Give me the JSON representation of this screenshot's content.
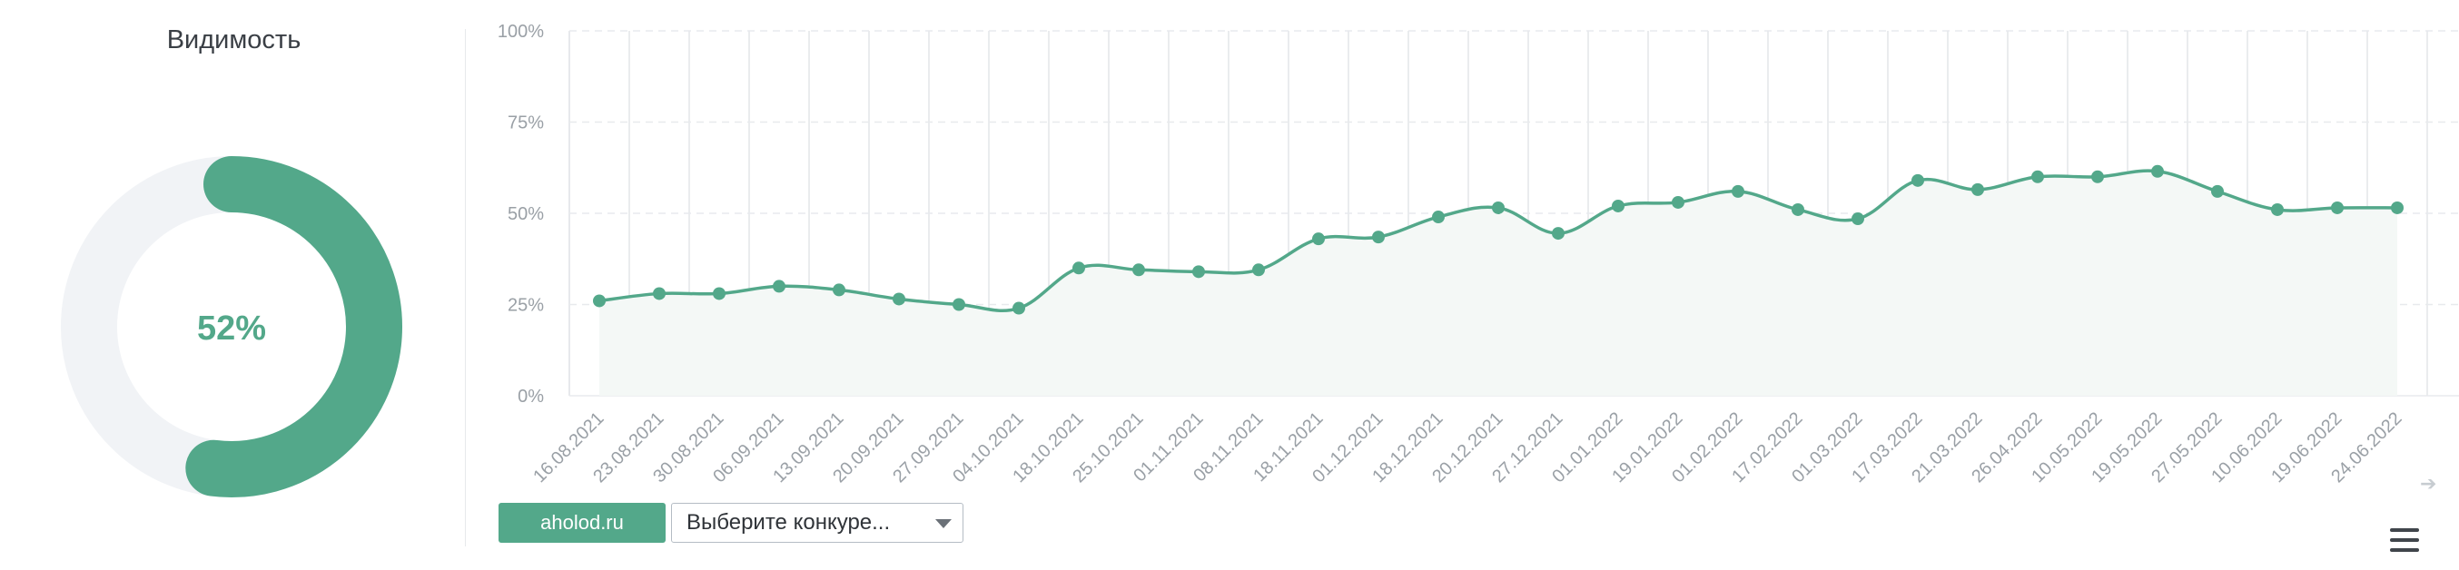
{
  "visibility": {
    "title": "Видимость",
    "percent_label": "52%",
    "value_fraction": 0.52,
    "track_color": "#f1f3f6",
    "fill_color": "#53a88a",
    "label_color": "#53a88a"
  },
  "controls": {
    "site_button_label": "aholod.ru",
    "competitor_select_label": "Выберите конкуре..."
  },
  "icons": {
    "menu": "hamburger-menu-icon",
    "arrow": "arrow-right-icon"
  },
  "chart_data": {
    "type": "area",
    "categories": [
      "16.08.2021",
      "23.08.2021",
      "30.08.2021",
      "06.09.2021",
      "13.09.2021",
      "20.09.2021",
      "27.09.2021",
      "04.10.2021",
      "18.10.2021",
      "25.10.2021",
      "01.11.2021",
      "08.11.2021",
      "18.11.2021",
      "01.12.2021",
      "18.12.2021",
      "20.12.2021",
      "27.12.2021",
      "01.01.2022",
      "19.01.2022",
      "01.02.2022",
      "17.02.2022",
      "01.03.2022",
      "17.03.2022",
      "21.03.2022",
      "26.04.2022",
      "10.05.2022",
      "19.05.2022",
      "27.05.2022",
      "10.06.2022",
      "19.06.2022",
      "24.06.2022"
    ],
    "series": [
      {
        "values": [
          26,
          28,
          28,
          30,
          29,
          26.5,
          25,
          24,
          35,
          34.5,
          34,
          34.5,
          43,
          43.5,
          49,
          51.5,
          44.5,
          52,
          53,
          56,
          51,
          48.5,
          59,
          56.5,
          60,
          60,
          61.5,
          56,
          51,
          51.5,
          51.5
        ]
      }
    ],
    "ylim": [
      0,
      100
    ],
    "yticks": [
      "0%",
      "25%",
      "50%",
      "75%",
      "100%"
    ],
    "ytick_values": [
      0,
      25,
      50,
      75,
      100
    ],
    "line_color": "#53a88a",
    "area_color": "#f4f8f6",
    "grid": true
  }
}
